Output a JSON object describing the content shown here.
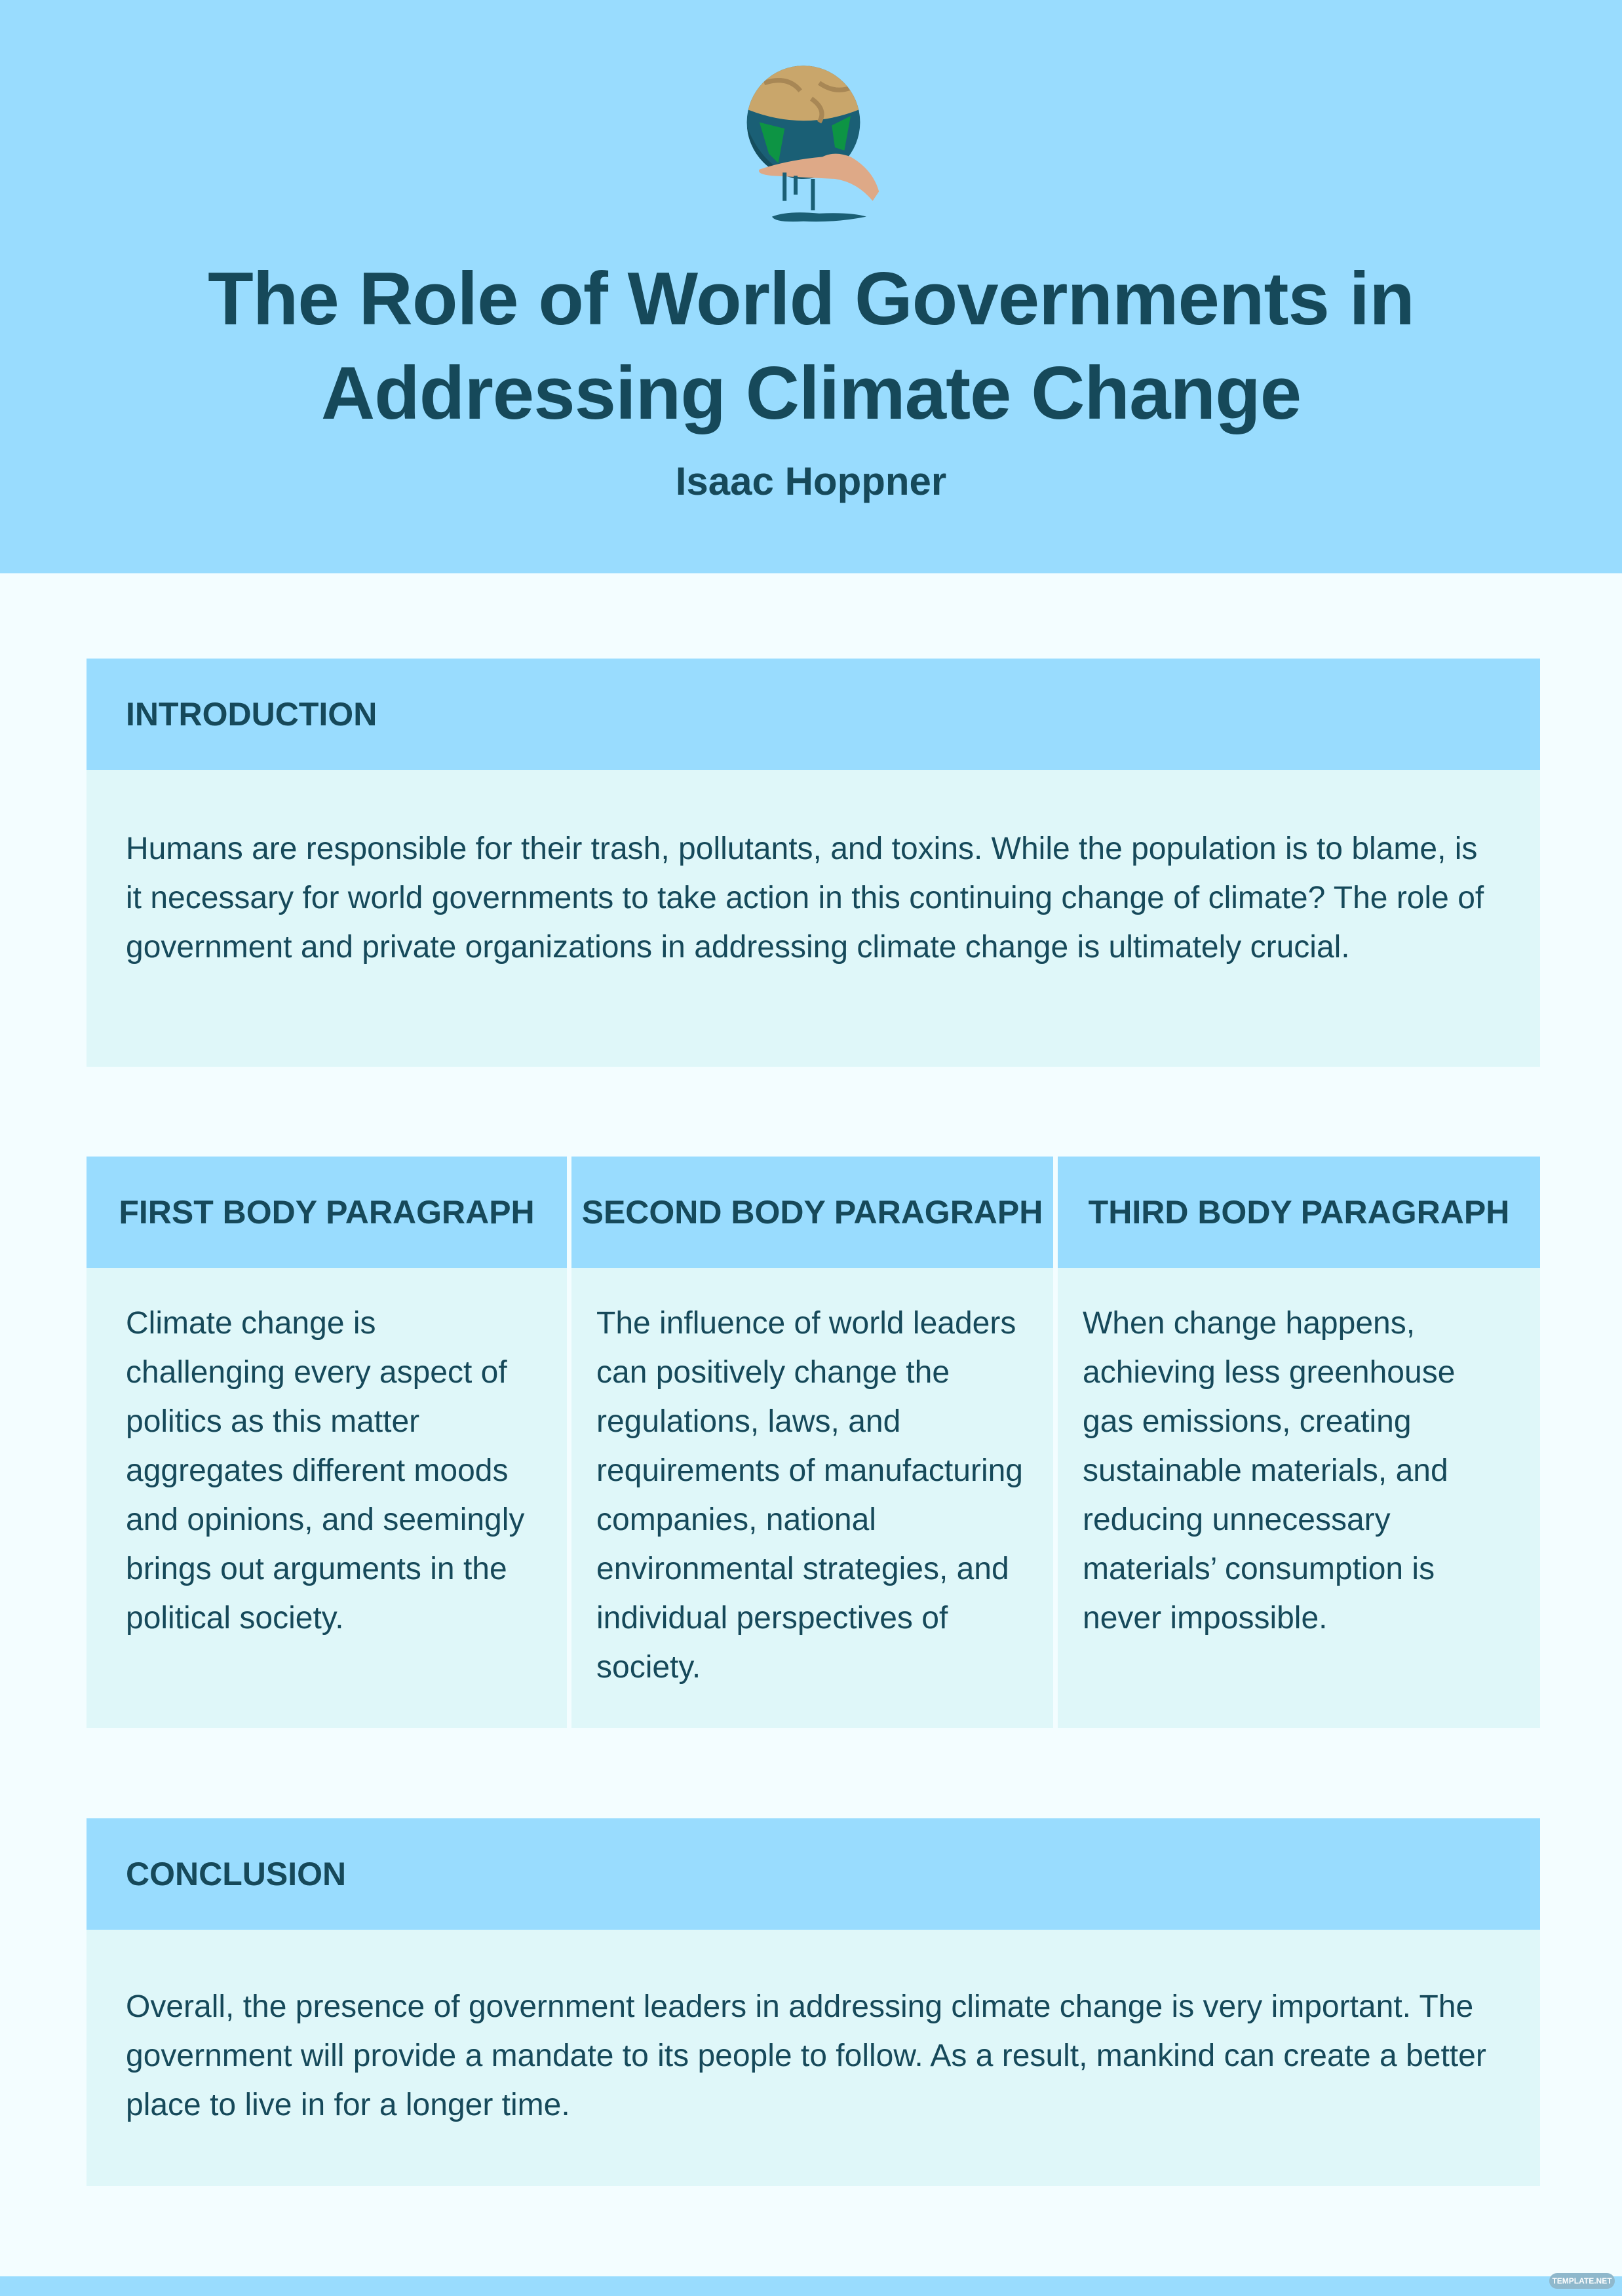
{
  "header": {
    "illustration": "earth-melting-in-hand",
    "title_line1": "The Role of World Governments in",
    "title_line2": "Addressing Climate Change",
    "author": "Isaac Hoppner"
  },
  "introduction": {
    "heading": "INTRODUCTION",
    "body": "Humans are responsible for their trash, pollutants, and toxins. While the population is to blame, is it necessary for world governments to take action in this continuing change of climate? The role of government and private organizations in addressing climate change is ultimately crucial."
  },
  "body_paragraphs": [
    {
      "heading": "FIRST BODY PARAGRAPH",
      "body": "Climate change is challenging every aspect of politics as this matter aggregates different moods and opinions, and seemingly brings out arguments in the political society."
    },
    {
      "heading": "SECOND BODY PARAGRAPH",
      "body": "The influence of world leaders can positively change the regulations, laws, and requirements of manufacturing companies, national environmental strategies, and individual perspectives of society."
    },
    {
      "heading": "THIRD BODY PARAGRAPH",
      "body": "When change happens, achieving less greenhouse gas emissions, creating sustainable materials, and reducing unnecessary materials’ consumption is never impossible."
    }
  ],
  "conclusion": {
    "heading": "CONCLUSION",
    "body": "Overall, the presence of government leaders in addressing climate change is very important. The government will provide a mandate to its people to follow. As a result, mankind can create a better place to live in for a longer time."
  },
  "watermark": "TEMPLATE.NET",
  "colors": {
    "header_bg": "#99dcfe",
    "page_bg": "#f3fdff",
    "card_bg": "#dff7f9",
    "text": "#16495a"
  }
}
